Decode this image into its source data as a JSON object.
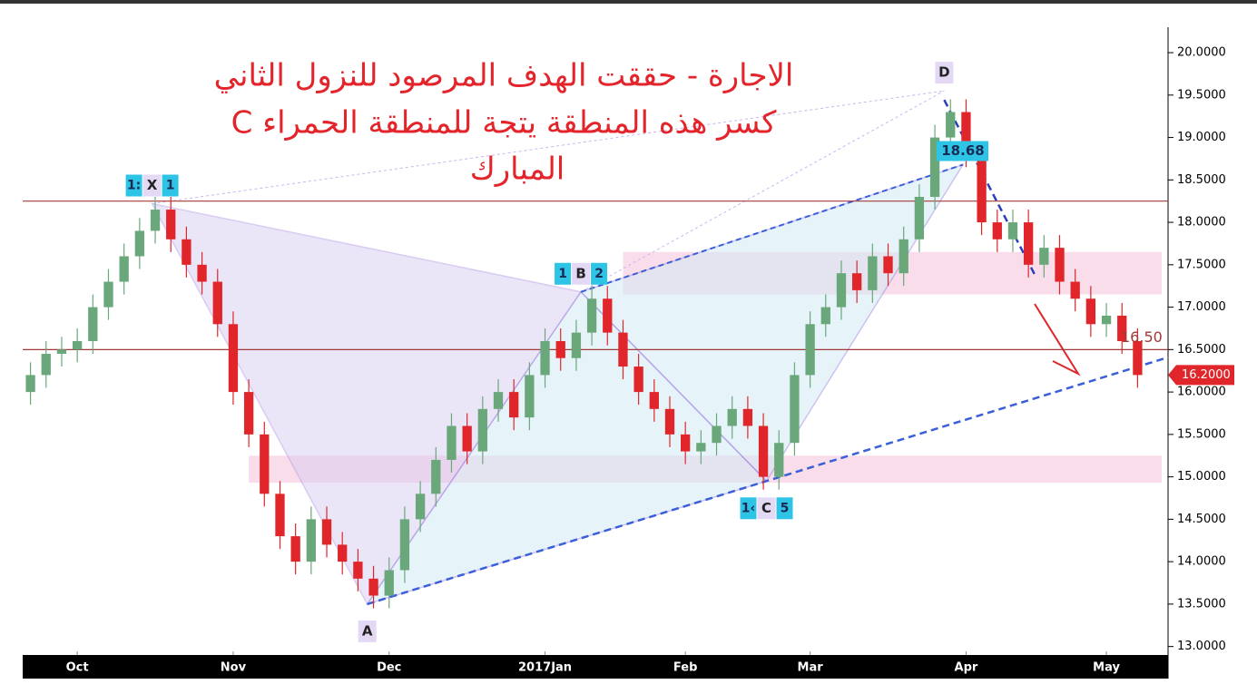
{
  "chart_data": {
    "type": "candlestick",
    "title_lines": [
      "الاجارة - حققت الهدف المرصود للنزول الثاني",
      "كسر هذه المنطقة يتجة للمنطقة الحمراء C",
      "المبارك"
    ],
    "categories": [
      null,
      null,
      null,
      "Oct",
      null,
      null,
      null,
      null,
      null,
      null,
      null,
      null,
      null,
      "Nov",
      null,
      null,
      null,
      null,
      null,
      null,
      null,
      null,
      null,
      "Dec",
      null,
      null,
      null,
      null,
      null,
      null,
      null,
      null,
      null,
      "2017Jan",
      null,
      null,
      null,
      null,
      null,
      null,
      null,
      null,
      "Feb",
      null,
      null,
      null,
      null,
      null,
      null,
      null,
      "Mar",
      null,
      null,
      null,
      null,
      null,
      null,
      null,
      null,
      null,
      "Apr",
      null,
      null,
      null,
      null,
      null,
      null,
      null,
      null,
      "May",
      null,
      null
    ],
    "open": [
      16.0,
      16.2,
      16.45,
      16.5,
      16.6,
      17.0,
      17.3,
      17.6,
      17.9,
      18.15,
      17.8,
      17.5,
      17.3,
      16.8,
      16.0,
      15.5,
      14.8,
      14.3,
      14.0,
      14.5,
      14.2,
      14.0,
      13.8,
      13.6,
      13.9,
      14.5,
      14.8,
      15.2,
      15.6,
      15.3,
      15.8,
      16.0,
      15.7,
      16.2,
      16.6,
      16.4,
      16.7,
      17.1,
      16.7,
      16.3,
      16.0,
      15.8,
      15.5,
      15.3,
      15.4,
      15.6,
      15.8,
      15.6,
      15.0,
      15.4,
      16.2,
      16.8,
      17.0,
      17.4,
      17.2,
      17.6,
      17.4,
      17.8,
      18.3,
      19.0,
      19.3,
      18.8,
      18.0,
      17.8,
      18.0,
      17.5,
      17.7,
      17.3,
      17.1,
      16.8,
      16.9,
      16.6
    ],
    "high": [
      16.35,
      16.6,
      16.65,
      16.75,
      17.15,
      17.45,
      17.75,
      18.05,
      18.3,
      18.3,
      17.95,
      17.65,
      17.45,
      16.95,
      16.15,
      15.65,
      14.95,
      14.45,
      14.65,
      14.65,
      14.35,
      14.15,
      13.95,
      14.05,
      14.65,
      14.95,
      15.35,
      15.75,
      15.75,
      15.95,
      16.15,
      16.15,
      16.35,
      16.75,
      16.75,
      16.85,
      17.25,
      17.25,
      16.85,
      16.45,
      16.15,
      15.95,
      15.65,
      15.55,
      15.75,
      15.95,
      15.95,
      15.75,
      15.55,
      16.35,
      16.95,
      17.15,
      17.55,
      17.55,
      17.75,
      17.75,
      17.95,
      18.45,
      19.15,
      19.45,
      19.45,
      18.95,
      18.15,
      18.15,
      18.15,
      17.85,
      17.85,
      17.45,
      17.25,
      17.05,
      17.05,
      16.75
    ],
    "low": [
      15.85,
      16.05,
      16.3,
      16.35,
      16.45,
      16.85,
      17.15,
      17.45,
      17.75,
      17.65,
      17.35,
      17.15,
      16.65,
      15.85,
      15.35,
      14.65,
      14.15,
      13.85,
      13.85,
      14.05,
      13.85,
      13.65,
      13.45,
      13.45,
      13.75,
      14.35,
      14.65,
      15.05,
      15.15,
      15.15,
      15.65,
      15.55,
      15.55,
      16.05,
      16.25,
      16.25,
      16.55,
      16.55,
      16.15,
      15.85,
      15.65,
      15.35,
      15.15,
      15.15,
      15.25,
      15.45,
      15.45,
      14.85,
      14.85,
      15.25,
      16.05,
      16.65,
      16.85,
      17.05,
      17.05,
      17.25,
      17.25,
      17.65,
      18.15,
      18.85,
      18.65,
      17.85,
      17.65,
      17.65,
      17.35,
      17.35,
      17.15,
      16.95,
      16.65,
      16.65,
      16.45,
      16.05
    ],
    "close": [
      16.2,
      16.45,
      16.5,
      16.6,
      17.0,
      17.3,
      17.6,
      17.9,
      18.15,
      17.8,
      17.5,
      17.3,
      16.8,
      16.0,
      15.5,
      14.8,
      14.3,
      14.0,
      14.5,
      14.2,
      14.0,
      13.8,
      13.6,
      13.9,
      14.5,
      14.8,
      15.2,
      15.6,
      15.3,
      15.8,
      16.0,
      15.7,
      16.2,
      16.6,
      16.4,
      16.7,
      17.1,
      16.7,
      16.3,
      16.0,
      15.8,
      15.5,
      15.3,
      15.4,
      15.6,
      15.8,
      15.6,
      15.0,
      15.4,
      16.2,
      16.8,
      17.0,
      17.4,
      17.2,
      17.6,
      17.4,
      17.8,
      18.3,
      19.0,
      19.3,
      18.8,
      18.0,
      17.8,
      18.0,
      17.5,
      17.7,
      17.3,
      17.1,
      16.8,
      16.9,
      16.6,
      16.2
    ],
    "up_color": "#6aa77a",
    "down_color": "#e0262a",
    "ylim": [
      12.9,
      20.3
    ],
    "yticks": [
      {
        "value": 13,
        "label": "13.0000"
      },
      {
        "value": 13.5,
        "label": "13.5000"
      },
      {
        "value": 14,
        "label": "14.0000"
      },
      {
        "value": 14.5,
        "label": "14.5000"
      },
      {
        "value": 15,
        "label": "15.0000"
      },
      {
        "value": 15.5,
        "label": "15.5000"
      },
      {
        "value": 16,
        "label": "16.0000"
      },
      {
        "value": 16.5,
        "label": "16.5000"
      },
      {
        "value": 17,
        "label": "17.0000"
      },
      {
        "value": 17.5,
        "label": "17.5000"
      },
      {
        "value": 18,
        "label": "18.0000"
      },
      {
        "value": 18.5,
        "label": "18.5000"
      },
      {
        "value": 19,
        "label": "19.0000"
      },
      {
        "value": 19.5,
        "label": "19.5000"
      },
      {
        "value": 20,
        "label": "20.0000"
      }
    ],
    "last_price": {
      "value": 16.2,
      "label": "16.2000"
    },
    "levels": [
      18.25,
      16.5
    ],
    "zones": [
      {
        "from": 17.15,
        "to": 17.65,
        "start": 38
      },
      {
        "from": 14.93,
        "to": 15.25,
        "start": 14
      }
    ],
    "pattern": [
      {
        "name": "X",
        "index": 7.8,
        "value": 18.22
      },
      {
        "name": "A",
        "index": 21.6,
        "value": 13.5
      },
      {
        "name": "B",
        "index": 35.3,
        "value": 17.18
      },
      {
        "name": "C",
        "index": 47.2,
        "value": 14.95
      },
      {
        "name": "D",
        "index": 58.6,
        "value": 19.55
      }
    ],
    "side_labels": [
      [
        "1:",
        "1"
      ],
      null,
      [
        "1",
        "2"
      ],
      [
        "1‹",
        "5"
      ],
      null
    ],
    "target": {
      "value": 18.68,
      "index": 59.8
    },
    "level_note": {
      "value": 16.5,
      "label": "16.50"
    }
  }
}
